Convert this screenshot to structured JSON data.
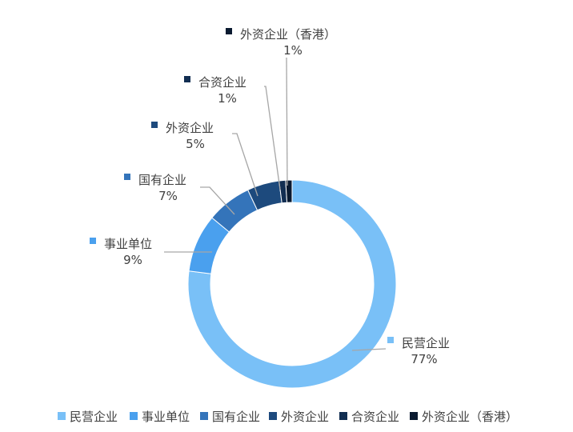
{
  "chart_data": {
    "type": "pie",
    "donut": true,
    "title": "",
    "legend_position": "bottom",
    "slices": [
      {
        "name": "民营企业",
        "value": 77,
        "label": "77%",
        "color": "#79C0F7"
      },
      {
        "name": "事业单位",
        "value": 9,
        "label": "9%",
        "color": "#4AA0EE"
      },
      {
        "name": "国有企业",
        "value": 7,
        "label": "7%",
        "color": "#3474BA"
      },
      {
        "name": "外资企业",
        "value": 5,
        "label": "5%",
        "color": "#1D4A7D"
      },
      {
        "name": "合资企业",
        "value": 1,
        "label": "1%",
        "color": "#122E52"
      },
      {
        "name": "外资企业（香港）",
        "value": 1,
        "label": "1%",
        "color": "#0A1A30"
      }
    ]
  }
}
